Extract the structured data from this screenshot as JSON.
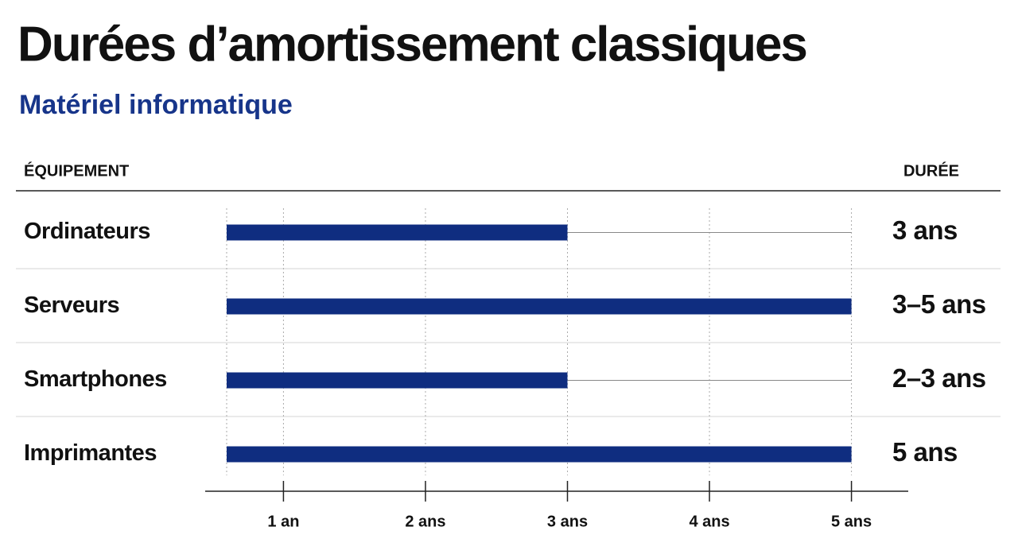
{
  "chart_data": {
    "type": "bar",
    "orientation": "horizontal",
    "title": "Durées d’amortissement classiques",
    "subtitle": "Matériel informatique",
    "category_header": "ÉQUIPEMENT",
    "duration_header": "DURÉE",
    "categories": [
      "Ordinateurs",
      "Serveurs",
      "Smartphones",
      "Imprimantes"
    ],
    "values": [
      3,
      5,
      3,
      5
    ],
    "durations": [
      "3 ans",
      "3–5 ans",
      "2–3 ans",
      "5 ans"
    ],
    "color": "#0f2d80",
    "xlim": [
      0.6,
      5.4
    ],
    "xticks": [
      {
        "value": 1,
        "label": "1 an"
      },
      {
        "value": 2,
        "label": "2 ans"
      },
      {
        "value": 3,
        "label": "3 ans"
      },
      {
        "value": 4,
        "label": "4 ans"
      },
      {
        "value": 5,
        "label": "5 ans"
      }
    ],
    "grid": true
  }
}
